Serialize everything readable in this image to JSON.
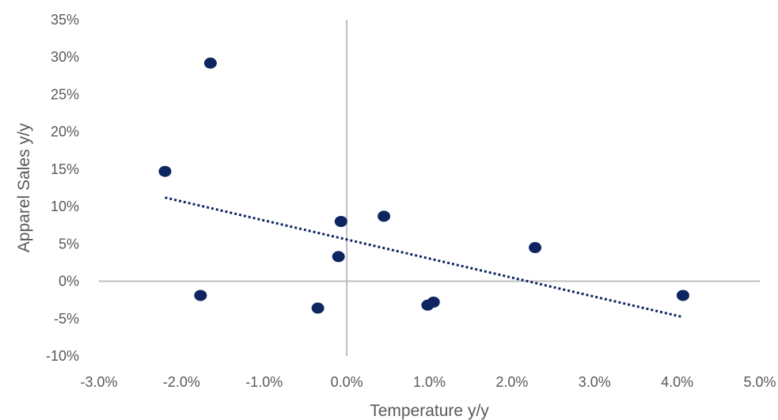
{
  "chart_data": {
    "type": "scatter",
    "title": "",
    "xlabel": "Temperature y/y",
    "ylabel": "Apparel Sales y/y",
    "xlim": [
      -0.03,
      0.05
    ],
    "ylim": [
      -0.1,
      0.35
    ],
    "x_ticks": [
      -0.03,
      -0.02,
      -0.01,
      0.0,
      0.01,
      0.02,
      0.03,
      0.04,
      0.05
    ],
    "y_ticks": [
      -0.1,
      -0.05,
      0.0,
      0.05,
      0.1,
      0.15,
      0.2,
      0.25,
      0.3,
      0.35
    ],
    "x_tick_labels": [
      "-3.0%",
      "-2.0%",
      "-1.0%",
      "0.0%",
      "1.0%",
      "2.0%",
      "3.0%",
      "4.0%",
      "5.0%"
    ],
    "y_tick_labels": [
      "-10%",
      "-5%",
      "0%",
      "5%",
      "10%",
      "15%",
      "20%",
      "25%",
      "30%",
      "35%"
    ],
    "grid": false,
    "zero_lines": true,
    "series": [
      {
        "color": "#0d2560",
        "points": [
          {
            "x": -0.0165,
            "y": 0.292
          },
          {
            "x": -0.022,
            "y": 0.147
          },
          {
            "x": -0.0177,
            "y": -0.019
          },
          {
            "x": -0.0007,
            "y": 0.08
          },
          {
            "x": -0.001,
            "y": 0.033
          },
          {
            "x": -0.0035,
            "y": -0.036
          },
          {
            "x": 0.0045,
            "y": 0.087
          },
          {
            "x": 0.0098,
            "y": -0.032
          },
          {
            "x": 0.0105,
            "y": -0.028
          },
          {
            "x": 0.0228,
            "y": 0.045
          },
          {
            "x": 0.0407,
            "y": -0.019
          }
        ]
      }
    ],
    "trendline": {
      "type": "linear",
      "style": "dotted",
      "color": "#0d2560",
      "x_start": -0.022,
      "x_end": 0.0407,
      "y_start": 0.112,
      "y_end": -0.048
    },
    "colors": {
      "axis_line": "#bfbfbf",
      "tick_text": "#595959",
      "marker": "#0d2560"
    }
  }
}
